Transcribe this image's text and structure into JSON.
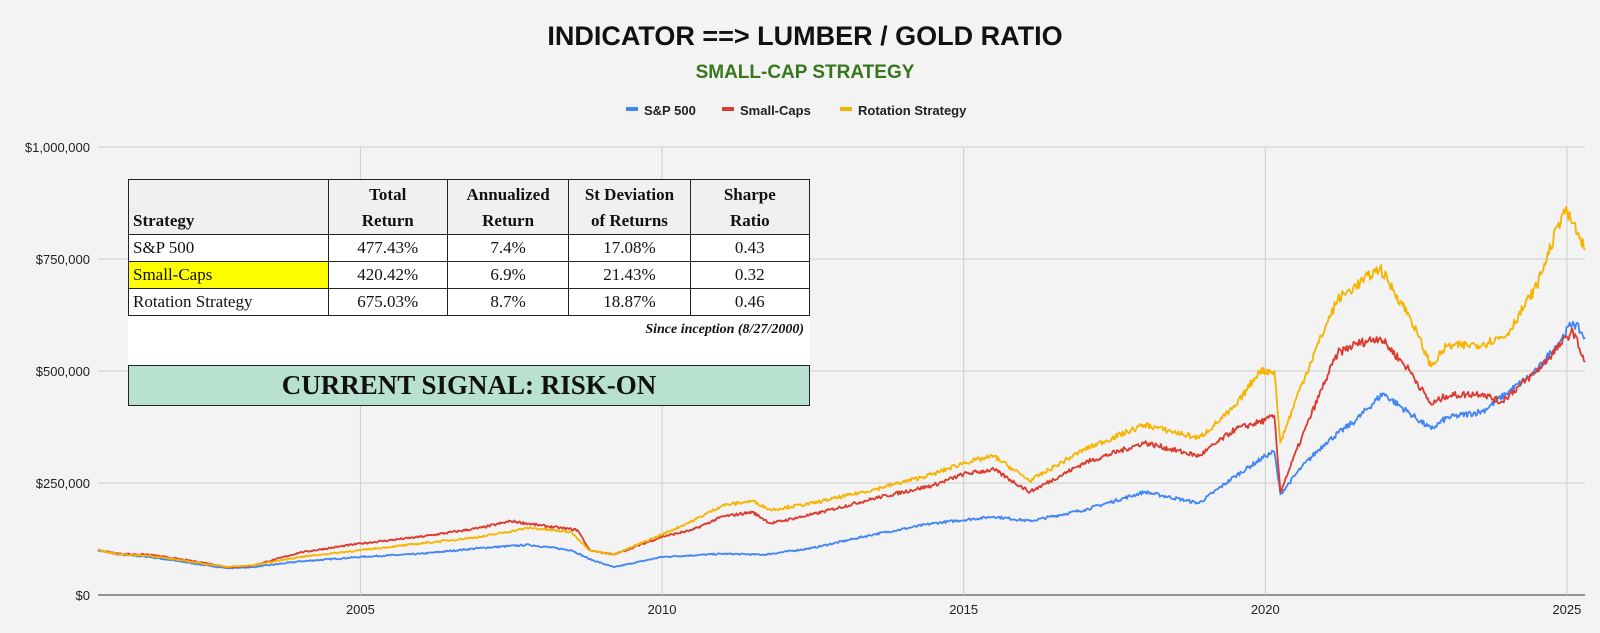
{
  "header": {
    "title": "INDICATOR ==> LUMBER / GOLD RATIO",
    "subtitle": "SMALL-CAP STRATEGY"
  },
  "colors": {
    "sp500": "#4285f4",
    "smallcaps": "#db3a2e",
    "rotation": "#f6b400",
    "subtitle": "#38761d",
    "signal_bg": "#b8e2cf",
    "highlight": "#ffff00"
  },
  "stats_table": {
    "headers": [
      "Strategy",
      "Total Return",
      "Annualized Return",
      "St Deviation of Returns",
      "Sharpe Ratio"
    ],
    "header_lines": [
      [
        "",
        "Strategy"
      ],
      [
        "Total",
        "Return"
      ],
      [
        "Annualized",
        "Return"
      ],
      [
        "St Deviation",
        "of Returns"
      ],
      [
        "Sharpe",
        "Ratio"
      ]
    ],
    "rows": [
      {
        "name": "S&P 500",
        "total": "477.43%",
        "annualized": "7.4%",
        "stdev": "17.08%",
        "sharpe": "0.43"
      },
      {
        "name": "Small-Caps",
        "total": "420.42%",
        "annualized": "6.9%",
        "stdev": "21.43%",
        "sharpe": "0.32"
      },
      {
        "name": "Rotation Strategy",
        "total": "675.03%",
        "annualized": "8.7%",
        "stdev": "18.87%",
        "sharpe": "0.46"
      }
    ],
    "since": "Since inception (8/27/2000)",
    "signal": "CURRENT SIGNAL: RISK-ON"
  },
  "chart_data": {
    "type": "line",
    "title": "INDICATOR ==> LUMBER / GOLD RATIO",
    "subtitle": "SMALL-CAP STRATEGY",
    "xlabel": "",
    "ylabel": "",
    "xlim": [
      2000.65,
      2025.3
    ],
    "ylim": [
      0,
      1000000
    ],
    "x_ticks": [
      2005,
      2010,
      2015,
      2020,
      2025
    ],
    "x_tick_labels": [
      "2005",
      "2010",
      "2015",
      "2020",
      "2025"
    ],
    "y_ticks": [
      0,
      250000,
      500000,
      750000,
      1000000
    ],
    "y_tick_labels": [
      "$0",
      "$250,000",
      "$500,000",
      "$750,000",
      "$1,000,000"
    ],
    "legend": [
      "S&P 500",
      "Small-Caps",
      "Rotation Strategy"
    ],
    "legend_position": "top",
    "grid": true,
    "series": [
      {
        "name": "S&P 500",
        "x": [
          2000.65,
          2001.0,
          2001.5,
          2002.0,
          2002.5,
          2002.8,
          2003.2,
          2004.0,
          2005.0,
          2006.0,
          2007.0,
          2007.8,
          2008.5,
          2008.8,
          2009.2,
          2010.0,
          2011.0,
          2011.7,
          2012.5,
          2013.5,
          2014.5,
          2015.5,
          2016.1,
          2017.0,
          2018.0,
          2018.9,
          2019.5,
          2020.0,
          2020.15,
          2020.25,
          2020.6,
          2021.0,
          2021.5,
          2021.95,
          2022.4,
          2022.75,
          2023.0,
          2023.6,
          2024.0,
          2024.5,
          2024.9,
          2025.1,
          2025.3
        ],
        "values": [
          100000,
          90000,
          85000,
          75000,
          65000,
          60000,
          62000,
          75000,
          85000,
          92000,
          105000,
          112000,
          100000,
          80000,
          62000,
          85000,
          92000,
          90000,
          105000,
          135000,
          160000,
          175000,
          165000,
          190000,
          230000,
          205000,
          265000,
          310000,
          320000,
          225000,
          285000,
          340000,
          390000,
          450000,
          405000,
          370000,
          395000,
          410000,
          450000,
          500000,
          570000,
          610000,
          575000
        ]
      },
      {
        "name": "Small-Caps",
        "x": [
          2000.65,
          2001.0,
          2001.5,
          2002.0,
          2002.5,
          2002.8,
          2003.2,
          2004.0,
          2005.0,
          2006.0,
          2007.0,
          2007.5,
          2008.0,
          2008.6,
          2008.8,
          2009.2,
          2010.0,
          2010.5,
          2011.0,
          2011.5,
          2011.8,
          2012.5,
          2013.5,
          2014.5,
          2015.0,
          2015.5,
          2016.1,
          2017.0,
          2018.0,
          2018.9,
          2019.5,
          2020.0,
          2020.15,
          2020.25,
          2020.6,
          2021.0,
          2021.2,
          2021.5,
          2021.9,
          2022.4,
          2022.75,
          2023.0,
          2023.6,
          2023.9,
          2024.5,
          2024.9,
          2025.1,
          2025.3
        ],
        "values": [
          100000,
          92000,
          90000,
          80000,
          70000,
          62000,
          65000,
          95000,
          115000,
          130000,
          150000,
          165000,
          155000,
          145000,
          100000,
          90000,
          130000,
          145000,
          175000,
          185000,
          160000,
          180000,
          215000,
          245000,
          270000,
          280000,
          230000,
          295000,
          340000,
          310000,
          370000,
          390000,
          400000,
          230000,
          350000,
          480000,
          540000,
          560000,
          575000,
          500000,
          425000,
          445000,
          450000,
          430000,
          500000,
          560000,
          590000,
          520000
        ]
      },
      {
        "name": "Rotation Strategy",
        "x": [
          2000.65,
          2001.0,
          2001.5,
          2002.0,
          2002.5,
          2002.8,
          2003.2,
          2004.0,
          2005.0,
          2006.0,
          2007.0,
          2007.8,
          2008.5,
          2008.8,
          2009.2,
          2010.0,
          2010.5,
          2011.0,
          2011.5,
          2011.8,
          2012.5,
          2013.5,
          2014.5,
          2015.0,
          2015.5,
          2016.1,
          2017.0,
          2018.0,
          2018.9,
          2019.5,
          2019.9,
          2020.15,
          2020.25,
          2020.6,
          2021.0,
          2021.2,
          2021.5,
          2021.9,
          2022.4,
          2022.75,
          2023.0,
          2023.6,
          2024.0,
          2024.5,
          2024.95,
          2025.1,
          2025.3
        ],
        "values": [
          100000,
          90000,
          88000,
          78000,
          68000,
          63000,
          66000,
          85000,
          100000,
          115000,
          130000,
          150000,
          140000,
          100000,
          90000,
          135000,
          165000,
          200000,
          210000,
          190000,
          205000,
          235000,
          270000,
          295000,
          310000,
          255000,
          325000,
          380000,
          350000,
          420000,
          500000,
          500000,
          340000,
          470000,
          600000,
          660000,
          690000,
          730000,
          620000,
          510000,
          555000,
          560000,
          580000,
          690000,
          860000,
          830000,
          770000
        ]
      }
    ]
  }
}
